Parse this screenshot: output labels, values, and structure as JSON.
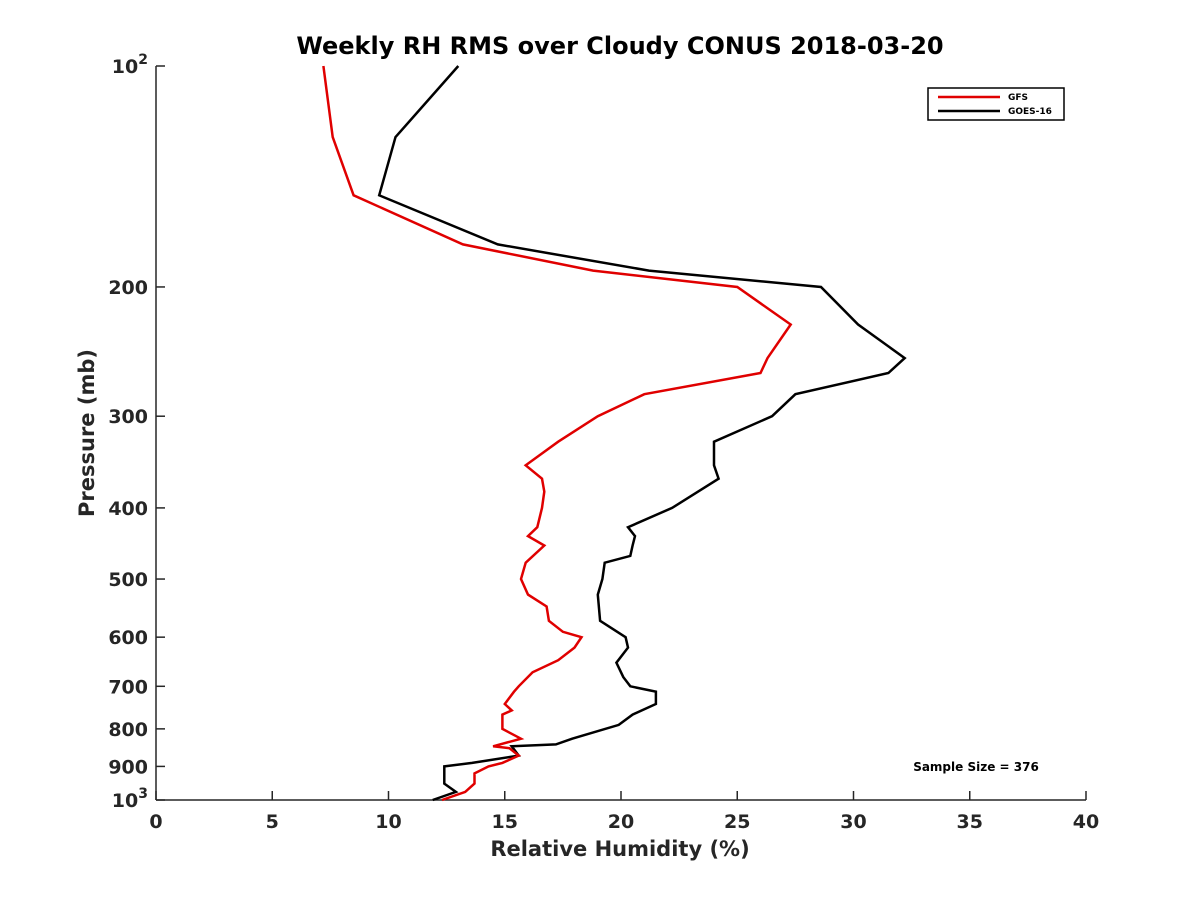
{
  "chart_data": {
    "type": "line",
    "title": "Weekly RH RMS over Cloudy CONUS 2018-03-20",
    "xlabel": "Relative Humidity (%)",
    "ylabel": "Pressure (mb)",
    "xlim": [
      0,
      40
    ],
    "ylim": [
      100,
      1000
    ],
    "yscale": "log",
    "y_reversed": true,
    "grid": false,
    "legend_position": "top-right",
    "x_ticks": [
      "0",
      "5",
      "10",
      "15",
      "20",
      "25",
      "30",
      "35",
      "40"
    ],
    "x_tick_values": [
      0,
      5,
      10,
      15,
      20,
      25,
      30,
      35,
      40
    ],
    "y_ticks": [
      {
        "value": 100,
        "base": "10",
        "exp": "2"
      },
      {
        "value": 200,
        "label": "200"
      },
      {
        "value": 300,
        "label": "300"
      },
      {
        "value": 400,
        "label": "400"
      },
      {
        "value": 500,
        "label": "500"
      },
      {
        "value": 600,
        "label": "600"
      },
      {
        "value": 700,
        "label": "700"
      },
      {
        "value": 800,
        "label": "800"
      },
      {
        "value": 900,
        "label": "900"
      },
      {
        "value": 1000,
        "base": "10",
        "exp": "3"
      }
    ],
    "annotation": "Sample Size = 376",
    "series": [
      {
        "name": "GFS",
        "color": "#e00000",
        "points": [
          [
            7.2,
            100
          ],
          [
            7.6,
            125
          ],
          [
            8.5,
            150
          ],
          [
            13.2,
            175
          ],
          [
            18.8,
            190
          ],
          [
            25.0,
            200
          ],
          [
            27.3,
            225
          ],
          [
            26.3,
            250
          ],
          [
            26.0,
            262
          ],
          [
            21.0,
            280
          ],
          [
            19.0,
            300
          ],
          [
            17.3,
            325
          ],
          [
            15.9,
            350
          ],
          [
            16.6,
            365
          ],
          [
            16.7,
            380
          ],
          [
            16.6,
            400
          ],
          [
            16.4,
            425
          ],
          [
            16.0,
            437
          ],
          [
            16.7,
            450
          ],
          [
            15.9,
            475
          ],
          [
            15.7,
            500
          ],
          [
            16.0,
            525
          ],
          [
            16.8,
            545
          ],
          [
            16.9,
            570
          ],
          [
            17.5,
            590
          ],
          [
            18.3,
            600
          ],
          [
            18.0,
            620
          ],
          [
            17.3,
            645
          ],
          [
            16.2,
            670
          ],
          [
            15.6,
            700
          ],
          [
            15.4,
            712
          ],
          [
            15.0,
            740
          ],
          [
            15.3,
            755
          ],
          [
            14.9,
            765
          ],
          [
            14.9,
            800
          ],
          [
            15.7,
            825
          ],
          [
            14.5,
            845
          ],
          [
            15.2,
            850
          ],
          [
            15.6,
            870
          ],
          [
            14.9,
            890
          ],
          [
            14.3,
            900
          ],
          [
            13.7,
            920
          ],
          [
            13.7,
            950
          ],
          [
            13.3,
            975
          ],
          [
            12.3,
            1000
          ]
        ]
      },
      {
        "name": "GOES-16",
        "color": "#000000",
        "points": [
          [
            13.0,
            100
          ],
          [
            10.3,
            125
          ],
          [
            9.6,
            150
          ],
          [
            14.7,
            175
          ],
          [
            21.2,
            190
          ],
          [
            28.6,
            200
          ],
          [
            30.2,
            225
          ],
          [
            32.2,
            250
          ],
          [
            31.5,
            262
          ],
          [
            27.5,
            280
          ],
          [
            26.5,
            300
          ],
          [
            24.0,
            325
          ],
          [
            24.0,
            350
          ],
          [
            24.2,
            365
          ],
          [
            22.2,
            400
          ],
          [
            20.3,
            425
          ],
          [
            20.6,
            437
          ],
          [
            20.5,
            450
          ],
          [
            20.4,
            465
          ],
          [
            19.3,
            475
          ],
          [
            19.2,
            500
          ],
          [
            19.0,
            525
          ],
          [
            19.1,
            570
          ],
          [
            20.2,
            600
          ],
          [
            20.3,
            620
          ],
          [
            19.8,
            650
          ],
          [
            20.1,
            680
          ],
          [
            20.4,
            700
          ],
          [
            21.5,
            712
          ],
          [
            21.5,
            740
          ],
          [
            20.5,
            765
          ],
          [
            19.9,
            790
          ],
          [
            17.9,
            825
          ],
          [
            17.2,
            840
          ],
          [
            15.3,
            845
          ],
          [
            15.6,
            870
          ],
          [
            13.6,
            890
          ],
          [
            12.4,
            900
          ],
          [
            12.4,
            950
          ],
          [
            12.9,
            975
          ],
          [
            11.9,
            1000
          ]
        ]
      }
    ]
  }
}
